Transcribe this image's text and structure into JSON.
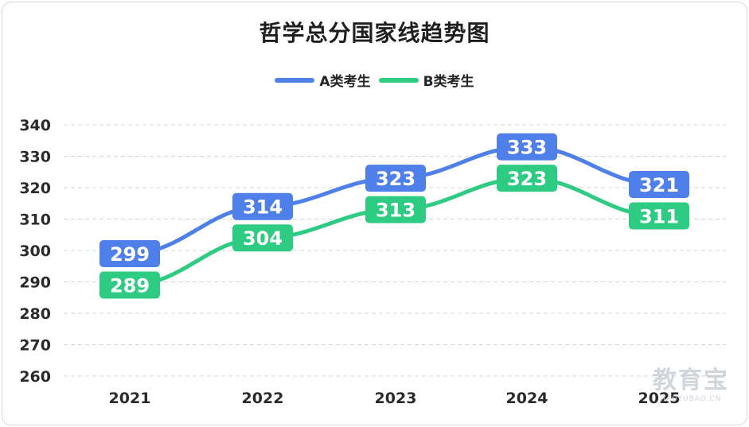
{
  "chart_data": {
    "type": "line",
    "title": "哲学总分国家线趋势图",
    "xlabel": "",
    "ylabel": "",
    "categories": [
      "2021",
      "2022",
      "2023",
      "2024",
      "2025"
    ],
    "series": [
      {
        "name": "A类考生",
        "color": "#4f7fe8",
        "values": [
          299,
          314,
          323,
          333,
          321
        ]
      },
      {
        "name": "B类考生",
        "color": "#2ecc82",
        "values": [
          289,
          304,
          313,
          323,
          311
        ]
      }
    ],
    "ylim": [
      260,
      340
    ],
    "yticks": [
      260,
      270,
      280,
      290,
      300,
      310,
      320,
      330,
      340
    ],
    "grid": true,
    "legend_position": "top-center",
    "data_labels": true
  },
  "watermark": {
    "main": "教育宝",
    "sub": "JIAOYUBAO.CN"
  }
}
